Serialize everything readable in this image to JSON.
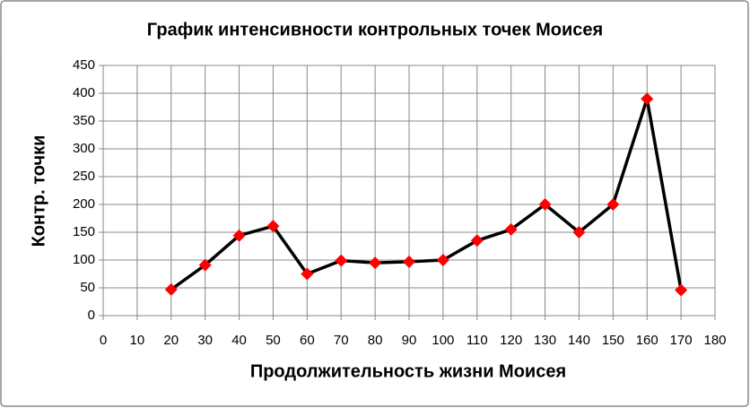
{
  "chart_data": {
    "type": "line",
    "title": "График интенсивности контрольных точек Моисея",
    "x_label": "Продолжительность жизни Моисея",
    "y_label": "Контр. точки",
    "x": [
      20,
      30,
      40,
      50,
      60,
      70,
      80,
      90,
      100,
      110,
      120,
      130,
      140,
      150,
      160,
      170
    ],
    "series": [
      {
        "name": "Контр. точки",
        "color": "#000000",
        "marker_color": "#ff0000",
        "values": [
          47,
          91,
          144,
          161,
          75,
          99,
          95,
          97,
          100,
          135,
          155,
          200,
          150,
          200,
          390,
          46
        ]
      }
    ],
    "xlim": [
      0,
      180
    ],
    "xticks": [
      0,
      10,
      20,
      30,
      40,
      50,
      60,
      70,
      80,
      90,
      100,
      110,
      120,
      130,
      140,
      150,
      160,
      170,
      180
    ],
    "ylim": [
      0,
      450
    ],
    "yticks": [
      0,
      50,
      100,
      150,
      200,
      250,
      300,
      350,
      400,
      450
    ],
    "grid": true
  }
}
